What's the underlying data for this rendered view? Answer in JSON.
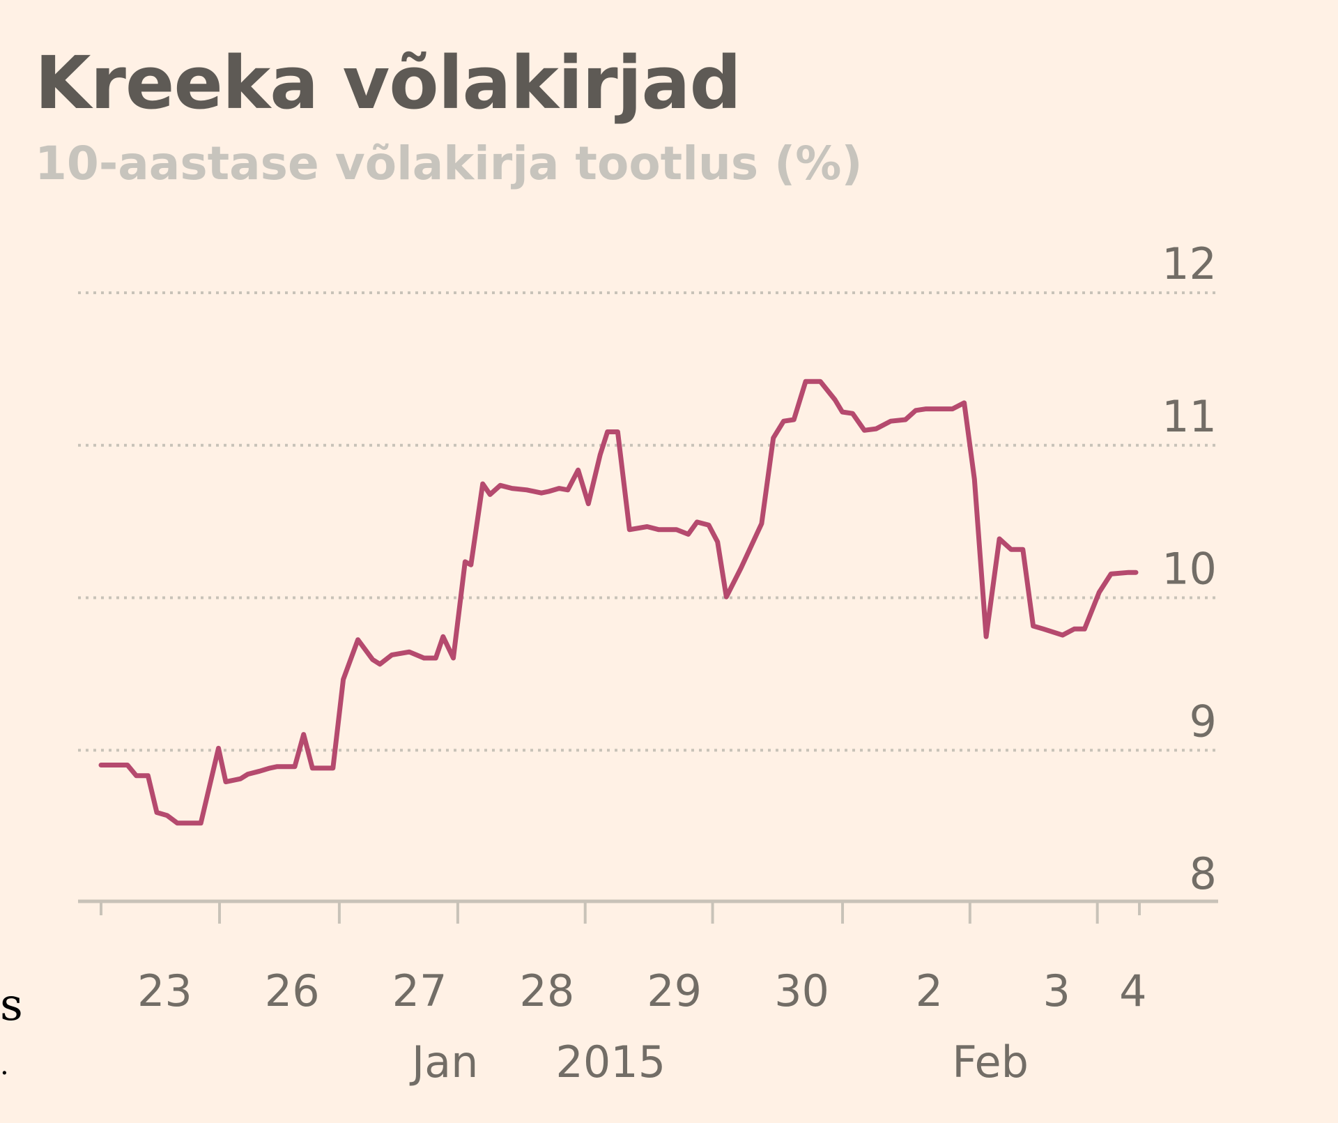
{
  "colors": {
    "background": "#fff1e5",
    "line": "#b54a6e",
    "gridline": "#c8c2b8",
    "axis": "#c8c2b8",
    "tick_text": "#726d66"
  },
  "fragments": {
    "left_edge_char": "s"
  },
  "chart_data": {
    "type": "line",
    "title": "Kreeka võlakirjad",
    "subtitle": "10-aastase võlakirja tootlus (%)",
    "xlabel": "",
    "ylabel": "",
    "ylim": [
      8,
      12
    ],
    "yticks": [
      8,
      9,
      10,
      11,
      12
    ],
    "y_axis_position": "right",
    "grid": "horizontal dotted",
    "xticks": [
      {
        "label": "23",
        "x": 0.5
      },
      {
        "label": "26",
        "x": 1.5
      },
      {
        "label": "27",
        "x": 2.5
      },
      {
        "label": "28",
        "x": 3.5
      },
      {
        "label": "29",
        "x": 4.5
      },
      {
        "label": "30",
        "x": 5.5
      },
      {
        "label": "2",
        "x": 6.5
      },
      {
        "label": "3",
        "x": 7.5
      },
      {
        "label": "4",
        "x": 8.1
      }
    ],
    "xtick_marks": [
      0,
      0.93,
      1.87,
      2.8,
      3.8,
      4.8,
      5.82,
      6.82,
      7.82,
      8.15
    ],
    "period_labels": [
      {
        "label": "Jan",
        "x": 2.7
      },
      {
        "label": "2015",
        "x": 4.0
      },
      {
        "label": "Feb",
        "x": 6.98
      }
    ],
    "xlim": [
      -0.18,
      8.65
    ],
    "series": [
      {
        "values": [
          [
            0.0,
            8.91
          ],
          [
            0.18,
            8.91
          ],
          [
            0.24,
            8.84
          ],
          [
            0.32,
            8.84
          ],
          [
            0.38,
            8.6
          ],
          [
            0.45,
            8.58
          ],
          [
            0.52,
            8.53
          ],
          [
            0.68,
            8.53
          ],
          [
            0.8,
            9.02
          ],
          [
            0.85,
            8.8
          ],
          [
            0.95,
            8.82
          ],
          [
            1.0,
            8.85
          ],
          [
            1.08,
            8.87
          ],
          [
            1.15,
            8.89
          ],
          [
            1.2,
            8.9
          ],
          [
            1.32,
            8.9
          ],
          [
            1.38,
            9.11
          ],
          [
            1.44,
            8.89
          ],
          [
            1.58,
            8.89
          ],
          [
            1.65,
            9.47
          ],
          [
            1.75,
            9.73
          ],
          [
            1.85,
            9.6
          ],
          [
            1.9,
            9.57
          ],
          [
            1.98,
            9.63
          ],
          [
            2.1,
            9.65
          ],
          [
            2.2,
            9.61
          ],
          [
            2.28,
            9.61
          ],
          [
            2.33,
            9.75
          ],
          [
            2.4,
            9.61
          ],
          [
            2.48,
            10.24
          ],
          [
            2.52,
            10.22
          ],
          [
            2.6,
            10.75
          ],
          [
            2.65,
            10.68
          ],
          [
            2.72,
            10.74
          ],
          [
            2.8,
            10.72
          ],
          [
            2.9,
            10.71
          ],
          [
            3.0,
            10.69
          ],
          [
            3.05,
            10.7
          ],
          [
            3.12,
            10.72
          ],
          [
            3.18,
            10.71
          ],
          [
            3.25,
            10.84
          ],
          [
            3.32,
            10.62
          ],
          [
            3.4,
            10.94
          ],
          [
            3.45,
            11.09
          ],
          [
            3.52,
            11.09
          ],
          [
            3.6,
            10.45
          ],
          [
            3.72,
            10.47
          ],
          [
            3.8,
            10.45
          ],
          [
            3.92,
            10.45
          ],
          [
            4.0,
            10.42
          ],
          [
            4.06,
            10.5
          ],
          [
            4.14,
            10.48
          ],
          [
            4.2,
            10.37
          ],
          [
            4.26,
            10.01
          ],
          [
            4.36,
            10.2
          ],
          [
            4.5,
            10.49
          ],
          [
            4.58,
            11.05
          ],
          [
            4.65,
            11.16
          ],
          [
            4.72,
            11.17
          ],
          [
            4.8,
            11.42
          ],
          [
            4.9,
            11.42
          ],
          [
            5.0,
            11.3
          ],
          [
            5.05,
            11.22
          ],
          [
            5.12,
            11.21
          ],
          [
            5.2,
            11.1
          ],
          [
            5.28,
            11.11
          ],
          [
            5.38,
            11.16
          ],
          [
            5.48,
            11.17
          ],
          [
            5.55,
            11.23
          ],
          [
            5.62,
            11.24
          ],
          [
            5.8,
            11.24
          ],
          [
            5.88,
            11.28
          ],
          [
            5.95,
            10.78
          ],
          [
            6.03,
            9.75
          ],
          [
            6.12,
            10.39
          ],
          [
            6.2,
            10.32
          ],
          [
            6.28,
            10.32
          ],
          [
            6.35,
            9.82
          ],
          [
            6.42,
            9.8
          ],
          [
            6.55,
            9.76
          ],
          [
            6.63,
            9.8
          ],
          [
            6.7,
            9.8
          ],
          [
            6.8,
            10.04
          ],
          [
            6.88,
            10.16
          ],
          [
            7.0,
            10.17
          ],
          [
            7.05,
            10.17
          ]
        ]
      }
    ]
  }
}
